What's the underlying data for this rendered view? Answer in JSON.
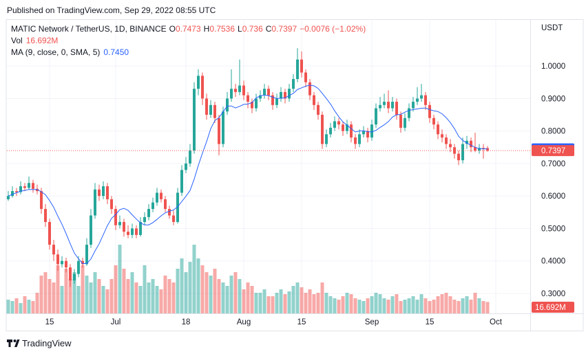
{
  "chart_data": {
    "type": "candlestick",
    "published": "Published on TradingView.com, Sep 29, 2022 08:55 UTC",
    "title": "MATIC Network / TetherUS, 1D, BINANCE",
    "ohlc_labels": [
      "O",
      "H",
      "L",
      "C"
    ],
    "change": "−0.0076 (−1.02%)",
    "up_color": "#26a69a",
    "down_color": "#ef5350",
    "candles": [
      [
        0.59,
        0.615,
        0.585,
        0.6
      ],
      [
        0.6,
        0.63,
        0.595,
        0.615
      ],
      [
        0.615,
        0.625,
        0.6,
        0.612
      ],
      [
        0.612,
        0.645,
        0.605,
        0.63
      ],
      [
        0.63,
        0.64,
        0.615,
        0.625
      ],
      [
        0.625,
        0.66,
        0.62,
        0.64
      ],
      [
        0.64,
        0.65,
        0.61,
        0.622
      ],
      [
        0.622,
        0.635,
        0.605,
        0.615
      ],
      [
        0.615,
        0.625,
        0.545,
        0.56
      ],
      [
        0.56,
        0.575,
        0.505,
        0.52
      ],
      [
        0.52,
        0.53,
        0.435,
        0.45
      ],
      [
        0.45,
        0.465,
        0.4,
        0.42
      ],
      [
        0.42,
        0.435,
        0.37,
        0.39
      ],
      [
        0.39,
        0.415,
        0.38,
        0.4
      ],
      [
        0.4,
        0.41,
        0.365,
        0.38
      ],
      [
        0.38,
        0.39,
        0.32,
        0.34
      ],
      [
        0.34,
        0.375,
        0.33,
        0.36
      ],
      [
        0.36,
        0.415,
        0.35,
        0.4
      ],
      [
        0.4,
        0.41,
        0.38,
        0.39
      ],
      [
        0.39,
        0.47,
        0.385,
        0.45
      ],
      [
        0.45,
        0.56,
        0.44,
        0.54
      ],
      [
        0.54,
        0.64,
        0.53,
        0.62
      ],
      [
        0.62,
        0.635,
        0.585,
        0.6
      ],
      [
        0.6,
        0.645,
        0.59,
        0.63
      ],
      [
        0.63,
        0.64,
        0.575,
        0.59
      ],
      [
        0.59,
        0.6,
        0.545,
        0.56
      ],
      [
        0.56,
        0.57,
        0.495,
        0.51
      ],
      [
        0.51,
        0.54,
        0.5,
        0.52
      ],
      [
        0.52,
        0.53,
        0.475,
        0.49
      ],
      [
        0.49,
        0.51,
        0.47,
        0.48
      ],
      [
        0.48,
        0.515,
        0.47,
        0.5
      ],
      [
        0.5,
        0.51,
        0.47,
        0.48
      ],
      [
        0.48,
        0.535,
        0.475,
        0.52
      ],
      [
        0.52,
        0.55,
        0.51,
        0.535
      ],
      [
        0.535,
        0.575,
        0.525,
        0.56
      ],
      [
        0.56,
        0.595,
        0.55,
        0.58
      ],
      [
        0.58,
        0.625,
        0.57,
        0.61
      ],
      [
        0.61,
        0.62,
        0.58,
        0.59
      ],
      [
        0.59,
        0.6,
        0.55,
        0.56
      ],
      [
        0.56,
        0.57,
        0.53,
        0.54
      ],
      [
        0.54,
        0.555,
        0.51,
        0.52
      ],
      [
        0.52,
        0.625,
        0.515,
        0.61
      ],
      [
        0.61,
        0.695,
        0.6,
        0.68
      ],
      [
        0.68,
        0.72,
        0.67,
        0.7
      ],
      [
        0.7,
        0.76,
        0.69,
        0.74
      ],
      [
        0.74,
        0.95,
        0.73,
        0.93
      ],
      [
        0.93,
        0.99,
        0.91,
        0.97
      ],
      [
        0.97,
        0.98,
        0.88,
        0.9
      ],
      [
        0.9,
        0.915,
        0.835,
        0.85
      ],
      [
        0.85,
        0.895,
        0.84,
        0.88
      ],
      [
        0.88,
        0.89,
        0.825,
        0.84
      ],
      [
        0.84,
        0.85,
        0.725,
        0.76
      ],
      [
        0.76,
        0.875,
        0.75,
        0.86
      ],
      [
        0.86,
        0.92,
        0.85,
        0.9
      ],
      [
        0.9,
        0.99,
        0.89,
        0.93
      ],
      [
        0.93,
        0.945,
        0.905,
        0.92
      ],
      [
        0.92,
        1.02,
        0.91,
        0.94
      ],
      [
        0.94,
        0.955,
        0.895,
        0.91
      ],
      [
        0.91,
        0.92,
        0.87,
        0.89
      ],
      [
        0.89,
        0.9,
        0.855,
        0.87
      ],
      [
        0.87,
        0.915,
        0.86,
        0.9
      ],
      [
        0.9,
        0.925,
        0.89,
        0.91
      ],
      [
        0.91,
        0.945,
        0.9,
        0.93
      ],
      [
        0.93,
        0.94,
        0.895,
        0.91
      ],
      [
        0.91,
        0.92,
        0.865,
        0.88
      ],
      [
        0.88,
        0.915,
        0.87,
        0.9
      ],
      [
        0.9,
        0.935,
        0.89,
        0.92
      ],
      [
        0.92,
        0.93,
        0.885,
        0.9
      ],
      [
        0.9,
        0.945,
        0.89,
        0.93
      ],
      [
        0.93,
        0.975,
        0.92,
        0.96
      ],
      [
        0.96,
        1.055,
        0.95,
        1.02
      ],
      [
        1.02,
        1.045,
        0.965,
        0.98
      ],
      [
        0.98,
        0.99,
        0.935,
        0.95
      ],
      [
        0.95,
        0.96,
        0.895,
        0.91
      ],
      [
        0.91,
        0.92,
        0.865,
        0.88
      ],
      [
        0.88,
        0.89,
        0.835,
        0.85
      ],
      [
        0.85,
        0.86,
        0.745,
        0.76
      ],
      [
        0.76,
        0.805,
        0.75,
        0.79
      ],
      [
        0.79,
        0.825,
        0.78,
        0.81
      ],
      [
        0.81,
        0.845,
        0.8,
        0.83
      ],
      [
        0.83,
        0.84,
        0.805,
        0.82
      ],
      [
        0.82,
        0.83,
        0.785,
        0.8
      ],
      [
        0.8,
        0.835,
        0.79,
        0.82
      ],
      [
        0.82,
        0.83,
        0.765,
        0.78
      ],
      [
        0.78,
        0.79,
        0.745,
        0.76
      ],
      [
        0.76,
        0.805,
        0.75,
        0.79
      ],
      [
        0.79,
        0.815,
        0.78,
        0.8
      ],
      [
        0.8,
        0.81,
        0.765,
        0.78
      ],
      [
        0.78,
        0.835,
        0.77,
        0.82
      ],
      [
        0.82,
        0.885,
        0.81,
        0.87
      ],
      [
        0.87,
        0.905,
        0.86,
        0.88
      ],
      [
        0.88,
        0.915,
        0.87,
        0.89
      ],
      [
        0.89,
        0.925,
        0.855,
        0.87
      ],
      [
        0.87,
        0.905,
        0.86,
        0.89
      ],
      [
        0.89,
        0.9,
        0.835,
        0.85
      ],
      [
        0.85,
        0.86,
        0.795,
        0.81
      ],
      [
        0.81,
        0.855,
        0.8,
        0.84
      ],
      [
        0.84,
        0.885,
        0.83,
        0.87
      ],
      [
        0.87,
        0.905,
        0.86,
        0.89
      ],
      [
        0.89,
        0.935,
        0.88,
        0.9
      ],
      [
        0.9,
        0.945,
        0.89,
        0.91
      ],
      [
        0.91,
        0.92,
        0.865,
        0.88
      ],
      [
        0.88,
        0.89,
        0.825,
        0.84
      ],
      [
        0.84,
        0.85,
        0.805,
        0.82
      ],
      [
        0.82,
        0.83,
        0.775,
        0.79
      ],
      [
        0.79,
        0.805,
        0.765,
        0.78
      ],
      [
        0.78,
        0.79,
        0.745,
        0.76
      ],
      [
        0.76,
        0.775,
        0.735,
        0.75
      ],
      [
        0.75,
        0.76,
        0.715,
        0.73
      ],
      [
        0.73,
        0.74,
        0.695,
        0.71
      ],
      [
        0.71,
        0.78,
        0.7,
        0.76
      ],
      [
        0.76,
        0.785,
        0.745,
        0.77
      ],
      [
        0.77,
        0.78,
        0.735,
        0.75
      ],
      [
        0.75,
        0.795,
        0.735,
        0.74
      ],
      [
        0.74,
        0.76,
        0.73,
        0.748
      ],
      [
        0.748,
        0.76,
        0.715,
        0.7473
      ],
      [
        0.7473,
        0.7536,
        0.736,
        0.7397
      ]
    ],
    "volume": {
      "name": "Vol",
      "label": "16.692M",
      "values": [
        20,
        18,
        22,
        15,
        25,
        20,
        18,
        30,
        55,
        60,
        50,
        45,
        70,
        40,
        65,
        50,
        60,
        40,
        70,
        55,
        45,
        60,
        50,
        40,
        35,
        50,
        70,
        100,
        65,
        50,
        60,
        45,
        40,
        70,
        45,
        50,
        40,
        35,
        55,
        50,
        45,
        65,
        80,
        60,
        75,
        100,
        80,
        70,
        60,
        55,
        65,
        50,
        45,
        40,
        55,
        60,
        50,
        35,
        45,
        40,
        30,
        30,
        35,
        25,
        25,
        30,
        35,
        28,
        32,
        40,
        45,
        38,
        30,
        35,
        28,
        30,
        45,
        30,
        25,
        22,
        20,
        25,
        30,
        28,
        22,
        20,
        18,
        22,
        25,
        30,
        28,
        22,
        20,
        25,
        28,
        18,
        20,
        22,
        25,
        20,
        28,
        22,
        18,
        20,
        25,
        28,
        30,
        25,
        20,
        18,
        22,
        25,
        20,
        30,
        22,
        18,
        16.692
      ]
    },
    "ma": {
      "name": "MA (9, close, 0, SMA, 5)",
      "color": "#2962ff",
      "label": "0.7450",
      "values": [
        0.6,
        0.605,
        0.61,
        0.615,
        0.617,
        0.62,
        0.62,
        0.62,
        0.613,
        0.604,
        0.586,
        0.565,
        0.538,
        0.513,
        0.484,
        0.453,
        0.424,
        0.407,
        0.392,
        0.392,
        0.406,
        0.431,
        0.453,
        0.481,
        0.509,
        0.531,
        0.543,
        0.558,
        0.562,
        0.556,
        0.542,
        0.529,
        0.517,
        0.511,
        0.511,
        0.518,
        0.528,
        0.539,
        0.548,
        0.553,
        0.557,
        0.567,
        0.583,
        0.599,
        0.617,
        0.652,
        0.694,
        0.732,
        0.767,
        0.807,
        0.832,
        0.841,
        0.859,
        0.877,
        0.877,
        0.871,
        0.876,
        0.882,
        0.883,
        0.887,
        0.902,
        0.908,
        0.911,
        0.909,
        0.904,
        0.9,
        0.901,
        0.902,
        0.909,
        0.916,
        0.928,
        0.933,
        0.938,
        0.941,
        0.939,
        0.931,
        0.916,
        0.9,
        0.883,
        0.862,
        0.844,
        0.828,
        0.818,
        0.807,
        0.797,
        0.8,
        0.801,
        0.798,
        0.797,
        0.802,
        0.811,
        0.819,
        0.829,
        0.843,
        0.85,
        0.851,
        0.858,
        0.863,
        0.866,
        0.868,
        0.87,
        0.871,
        0.866,
        0.862,
        0.86,
        0.853,
        0.841,
        0.826,
        0.807,
        0.784,
        0.771,
        0.763,
        0.756,
        0.75,
        0.746,
        0.745,
        0.745
      ]
    },
    "y_axis_label": "USDT",
    "ylim": [
      0.2386,
      1.1398
    ],
    "yticks": [
      {
        "value": 0.3,
        "label": "0.3000"
      },
      {
        "value": 0.4,
        "label": "0.4000"
      },
      {
        "value": 0.5,
        "label": "0.5000"
      },
      {
        "value": 0.6,
        "label": "0.6000"
      },
      {
        "value": 0.7,
        "label": "0.7000"
      },
      {
        "value": 0.8,
        "label": "0.8000"
      },
      {
        "value": 0.9,
        "label": "0.9000"
      },
      {
        "value": 1.0,
        "label": "1.0000"
      }
    ],
    "xlim": [
      -0.3333,
      126.3333
    ],
    "xticks": [
      {
        "value": 10,
        "label": "15"
      },
      {
        "value": 26,
        "label": "Jul"
      },
      {
        "value": 43,
        "label": "18"
      },
      {
        "value": 57,
        "label": "Aug"
      },
      {
        "value": 71,
        "label": "15"
      },
      {
        "value": 88,
        "label": "Sep"
      },
      {
        "value": 102,
        "label": "15"
      },
      {
        "value": 118,
        "label": "Oct"
      }
    ],
    "grid": true,
    "brand": "TradingView"
  }
}
